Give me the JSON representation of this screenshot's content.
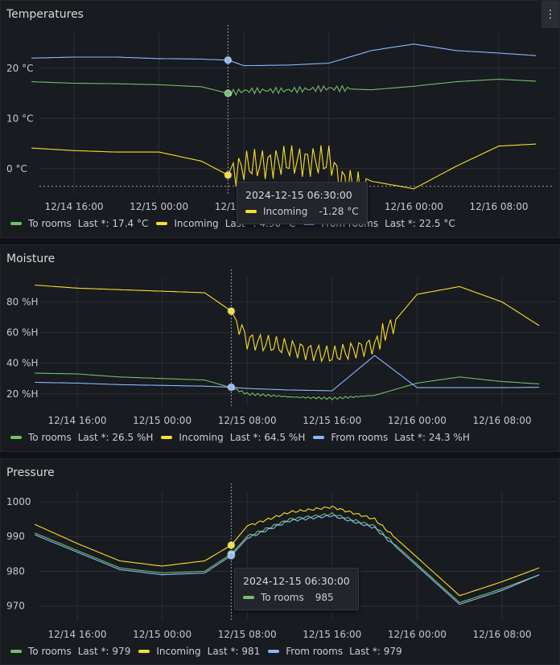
{
  "colors": {
    "to_rooms": "#73bf69",
    "incoming": "#fade2a",
    "from_rooms": "#8ab8ff",
    "background": "#111217",
    "panel": "#181b1f",
    "grid": "#2c2f35"
  },
  "panels": {
    "temperatures": {
      "title": "Temperatures",
      "menu_icon": "more-vertical-icon",
      "y_ticks": [
        {
          "value": 20,
          "label": "20 °C"
        },
        {
          "value": 10,
          "label": "10 °C"
        },
        {
          "value": 0,
          "label": "0 °C"
        }
      ],
      "x_ticks": [
        "12/14 16:00",
        "12/15 00:00",
        "12/15 08:00",
        "12/15 16:00",
        "12/16 00:00",
        "12/16 08:00"
      ],
      "legend": {
        "to_rooms": {
          "name": "To rooms",
          "last": "Last *: 17.4 °C"
        },
        "incoming": {
          "name": "Incoming",
          "last": "Last *: 4.90 °C"
        },
        "from_rooms": {
          "name": "From rooms",
          "last": "Last *: 22.5 °C"
        }
      },
      "tooltip": {
        "time": "2024-12-15 06:30:00",
        "series": "Incoming",
        "value": "-1.28 °C"
      }
    },
    "moisture": {
      "title": "Moisture",
      "y_ticks": [
        {
          "value": 80,
          "label": "80 %H"
        },
        {
          "value": 60,
          "label": "60 %H"
        },
        {
          "value": 40,
          "label": "40 %H"
        },
        {
          "value": 20,
          "label": "20 %H"
        }
      ],
      "x_ticks": [
        "12/14 16:00",
        "12/15 00:00",
        "12/15 08:00",
        "12/15 16:00",
        "12/16 00:00",
        "12/16 08:00"
      ],
      "legend": {
        "to_rooms": {
          "name": "To rooms",
          "last": "Last *: 26.5 %H"
        },
        "incoming": {
          "name": "Incoming",
          "last": "Last *: 64.5 %H"
        },
        "from_rooms": {
          "name": "From rooms",
          "last": "Last *: 24.3 %H"
        }
      }
    },
    "pressure": {
      "title": "Pressure",
      "y_ticks": [
        {
          "value": 1000,
          "label": "1000"
        },
        {
          "value": 990,
          "label": "990"
        },
        {
          "value": 980,
          "label": "980"
        },
        {
          "value": 970,
          "label": "970"
        }
      ],
      "x_ticks": [
        "12/14 16:00",
        "12/15 00:00",
        "12/15 08:00",
        "12/15 16:00",
        "12/16 00:00",
        "12/16 08:00"
      ],
      "legend": {
        "to_rooms": {
          "name": "To rooms",
          "last": "Last *: 979"
        },
        "incoming": {
          "name": "Incoming",
          "last": "Last *: 981"
        },
        "from_rooms": {
          "name": "From rooms",
          "last": "Last *: 979"
        }
      },
      "tooltip": {
        "time": "2024-12-15 06:30:00",
        "series": "To rooms",
        "value": "985"
      }
    }
  },
  "chart_data": [
    {
      "type": "line",
      "title": "Temperatures",
      "x_ticks": [
        "12/14 16:00",
        "12/15 00:00",
        "12/15 08:00",
        "12/15 16:00",
        "12/16 00:00",
        "12/16 08:00"
      ],
      "x": [
        "12/14 12:00",
        "12/14 16:00",
        "12/14 20:00",
        "12/15 00:00",
        "12/15 04:00",
        "12/15 06:30",
        "12/15 08:00",
        "12/15 12:00",
        "12/15 16:00",
        "12/15 20:00",
        "12/16 00:00",
        "12/16 04:00",
        "12/16 08:00",
        "12/16 11:30"
      ],
      "series": [
        {
          "name": "To rooms",
          "values": [
            17.3,
            17.0,
            16.9,
            16.7,
            16.3,
            15.0,
            15.5,
            15.6,
            16.0,
            15.7,
            16.4,
            17.3,
            17.8,
            17.4
          ]
        },
        {
          "name": "Incoming",
          "values": [
            4.1,
            3.6,
            3.3,
            3.3,
            1.5,
            -1.28,
            0.5,
            1.5,
            1.5,
            -2.5,
            -4.0,
            0.5,
            4.5,
            4.9
          ]
        },
        {
          "name": "From rooms",
          "values": [
            22.0,
            22.2,
            22.2,
            21.9,
            21.8,
            21.6,
            20.5,
            20.6,
            21.0,
            23.5,
            24.8,
            23.5,
            23.0,
            22.5
          ]
        }
      ],
      "ylim": [
        -5,
        27
      ],
      "threshold": -3.5
    },
    {
      "type": "line",
      "title": "Moisture",
      "x_ticks": [
        "12/14 16:00",
        "12/15 00:00",
        "12/15 08:00",
        "12/15 16:00",
        "12/16 00:00",
        "12/16 08:00"
      ],
      "x": [
        "12/14 12:00",
        "12/14 16:00",
        "12/14 20:00",
        "12/15 00:00",
        "12/15 04:00",
        "12/15 06:30",
        "12/15 08:00",
        "12/15 12:00",
        "12/15 16:00",
        "12/15 20:00",
        "12/16 00:00",
        "12/16 04:00",
        "12/16 08:00",
        "12/16 11:30"
      ],
      "series": [
        {
          "name": "To rooms",
          "values": [
            33.5,
            33,
            31,
            30,
            29,
            24,
            20,
            18,
            17,
            19,
            27,
            31,
            28,
            26.5
          ]
        },
        {
          "name": "Incoming",
          "values": [
            91,
            89,
            88,
            87,
            86,
            74,
            55,
            50,
            45,
            52,
            85,
            90,
            80,
            64.5
          ]
        },
        {
          "name": "From rooms",
          "values": [
            27.5,
            27,
            26,
            25.5,
            25,
            24.3,
            23.5,
            22.5,
            22,
            45,
            24,
            24,
            24,
            24.3
          ]
        }
      ],
      "ylim": [
        12,
        96
      ]
    },
    {
      "type": "line",
      "title": "Pressure",
      "x_ticks": [
        "12/14 16:00",
        "12/15 00:00",
        "12/15 08:00",
        "12/15 16:00",
        "12/16 00:00",
        "12/16 08:00"
      ],
      "x": [
        "12/14 12:00",
        "12/14 16:00",
        "12/14 20:00",
        "12/15 00:00",
        "12/15 04:00",
        "12/15 06:30",
        "12/15 08:00",
        "12/15 12:00",
        "12/15 16:00",
        "12/15 20:00",
        "12/16 00:00",
        "12/16 04:00",
        "12/16 08:00",
        "12/16 11:30"
      ],
      "series": [
        {
          "name": "To rooms",
          "values": [
            991,
            986,
            981,
            979.5,
            980,
            985,
            990,
            995,
            996.5,
            993,
            982,
            971,
            975,
            979
          ]
        },
        {
          "name": "Incoming",
          "values": [
            993.5,
            988,
            983,
            981.5,
            983,
            987.5,
            993,
            997,
            998.5,
            995,
            984,
            973,
            977,
            981
          ]
        },
        {
          "name": "From rooms",
          "values": [
            990.5,
            985.5,
            980.5,
            979,
            979.5,
            984.5,
            989.5,
            994.5,
            996,
            992.5,
            981.5,
            970.5,
            974.5,
            979
          ]
        }
      ],
      "ylim": [
        966,
        1003
      ]
    }
  ]
}
